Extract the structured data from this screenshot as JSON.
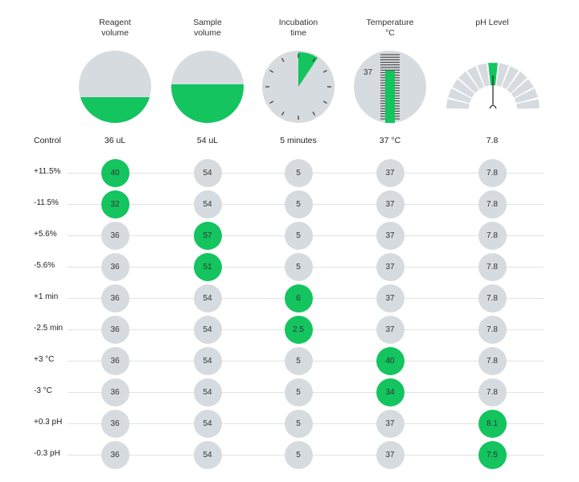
{
  "accent_color": "#13c45f",
  "neutral_color": "#d6dbdf",
  "columns": [
    {
      "key": "reagent",
      "header_line1": "Reagent",
      "header_line2": "volume",
      "control": "36 uL",
      "gauge": "half-fill-circle",
      "fill_fraction": 0.3
    },
    {
      "key": "sample",
      "header_line1": "Sample",
      "header_line2": "volume",
      "control": "54 uL",
      "gauge": "half-fill-circle",
      "fill_fraction": 0.45
    },
    {
      "key": "incubation",
      "header_line1": "Incubation",
      "header_line2": "time",
      "control": "5 minutes",
      "gauge": "clock-icon",
      "fill_fraction": 0.08
    },
    {
      "key": "temperature",
      "header_line1": "Temperature",
      "header_line2": "°C",
      "control": "37 °C",
      "gauge": "thermometer-icon",
      "gauge_label": "37",
      "fill_fraction": 0.7
    },
    {
      "key": "ph",
      "header_line1": "pH Level",
      "header_line2": "",
      "control": "7.8",
      "gauge": "ph-meter-icon"
    }
  ],
  "control_label": "Control",
  "rows": [
    {
      "label": "+11.5%",
      "values": [
        "40",
        "54",
        "5",
        "37",
        "7.8"
      ],
      "changed": 0
    },
    {
      "label": "-11.5%",
      "values": [
        "32",
        "54",
        "5",
        "37",
        "7.8"
      ],
      "changed": 0
    },
    {
      "label": "+5.6%",
      "values": [
        "36",
        "57",
        "5",
        "37",
        "7.8"
      ],
      "changed": 1
    },
    {
      "label": "-5.6%",
      "values": [
        "36",
        "51",
        "5",
        "37",
        "7.8"
      ],
      "changed": 1
    },
    {
      "label": "+1 min",
      "values": [
        "36",
        "54",
        "6",
        "37",
        "7.8"
      ],
      "changed": 2
    },
    {
      "label": "-2.5 min",
      "values": [
        "36",
        "54",
        "2.5",
        "37",
        "7.8"
      ],
      "changed": 2
    },
    {
      "label": "+3 °C",
      "values": [
        "36",
        "54",
        "5",
        "40",
        "7.8"
      ],
      "changed": 3
    },
    {
      "label": "-3 °C",
      "values": [
        "36",
        "54",
        "5",
        "34",
        "7.8"
      ],
      "changed": 3
    },
    {
      "label": "+0.3 pH",
      "values": [
        "36",
        "54",
        "5",
        "37",
        "8.1"
      ],
      "changed": 4
    },
    {
      "label": "-0.3 pH",
      "values": [
        "36",
        "54",
        "5",
        "37",
        "7.5"
      ],
      "changed": 4
    }
  ]
}
